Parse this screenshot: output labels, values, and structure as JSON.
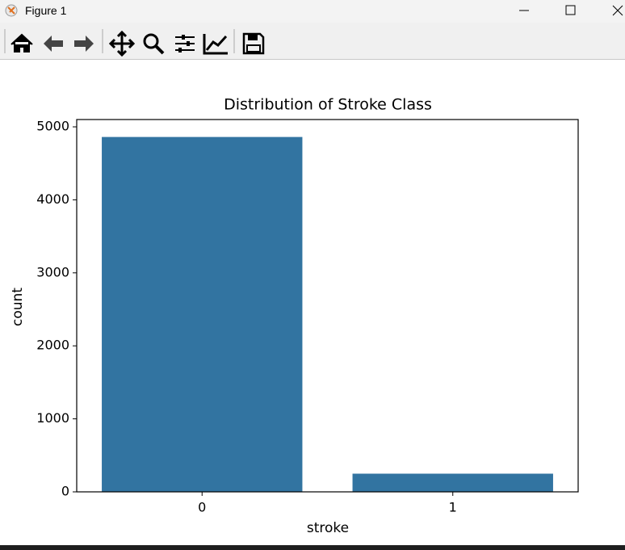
{
  "window": {
    "title": "Figure 1"
  },
  "chart_data": {
    "type": "bar",
    "title": "Distribution of Stroke Class",
    "x_label": "stroke",
    "y_label": "count",
    "categories": [
      "0",
      "1"
    ],
    "values": [
      4861,
      249
    ],
    "color": "#3274a1",
    "ylim": [
      0,
      5100
    ],
    "yticks": [
      0,
      1000,
      2000,
      3000,
      4000,
      5000
    ],
    "grid": false
  }
}
